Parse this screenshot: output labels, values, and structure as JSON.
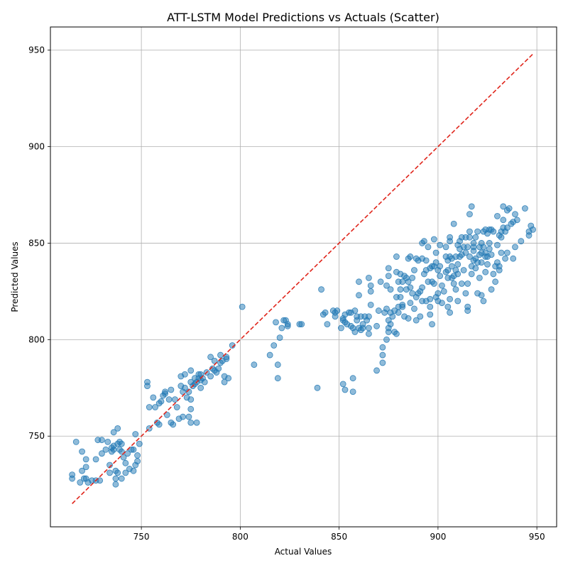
{
  "chart_data": {
    "type": "scatter",
    "title": "ATT-LSTM Model Predictions vs Actuals (Scatter)",
    "xlabel": "Actual Values",
    "ylabel": "Predicted Values",
    "xlim": [
      704,
      960
    ],
    "ylim": [
      703,
      962
    ],
    "xticks": [
      750,
      800,
      850,
      900,
      950
    ],
    "yticks": [
      750,
      800,
      850,
      900,
      950
    ],
    "grid": true,
    "legend": "none",
    "point_color": "#1f77b4",
    "point_alpha": 0.5,
    "reference_line": {
      "style": "dashed",
      "color": "#e0251b",
      "from": [
        715,
        715
      ],
      "to": [
        948,
        948
      ]
    },
    "points": [
      [
        715,
        728
      ],
      [
        715,
        730
      ],
      [
        717,
        747
      ],
      [
        719,
        726
      ],
      [
        720,
        742
      ],
      [
        720,
        732
      ],
      [
        721,
        728
      ],
      [
        722,
        734
      ],
      [
        722,
        738
      ],
      [
        722,
        728
      ],
      [
        723,
        726
      ],
      [
        725,
        727
      ],
      [
        727,
        727
      ],
      [
        727,
        738
      ],
      [
        728,
        748
      ],
      [
        729,
        727
      ],
      [
        730,
        748
      ],
      [
        730,
        741
      ],
      [
        732,
        743
      ],
      [
        733,
        747
      ],
      [
        734,
        735
      ],
      [
        734,
        731
      ],
      [
        735,
        742
      ],
      [
        735,
        744
      ],
      [
        736,
        752
      ],
      [
        736,
        745
      ],
      [
        736,
        743
      ],
      [
        737,
        725
      ],
      [
        737,
        728
      ],
      [
        737,
        732
      ],
      [
        738,
        746
      ],
      [
        738,
        754
      ],
      [
        738,
        731
      ],
      [
        739,
        743
      ],
      [
        739,
        747
      ],
      [
        740,
        728
      ],
      [
        740,
        746
      ],
      [
        740,
        742
      ],
      [
        741,
        739
      ],
      [
        742,
        736
      ],
      [
        742,
        731
      ],
      [
        743,
        741
      ],
      [
        744,
        733
      ],
      [
        745,
        743
      ],
      [
        746,
        743
      ],
      [
        746,
        732
      ],
      [
        747,
        751
      ],
      [
        747,
        735
      ],
      [
        748,
        740
      ],
      [
        748,
        737
      ],
      [
        749,
        746
      ],
      [
        753,
        778
      ],
      [
        753,
        776
      ],
      [
        754,
        765
      ],
      [
        754,
        754
      ],
      [
        756,
        770
      ],
      [
        757,
        765
      ],
      [
        758,
        757
      ],
      [
        759,
        767
      ],
      [
        759,
        756
      ],
      [
        760,
        768
      ],
      [
        761,
        771
      ],
      [
        762,
        772
      ],
      [
        762,
        773
      ],
      [
        763,
        761
      ],
      [
        764,
        769
      ],
      [
        765,
        774
      ],
      [
        765,
        757
      ],
      [
        766,
        756
      ],
      [
        767,
        769
      ],
      [
        768,
        765
      ],
      [
        769,
        759
      ],
      [
        770,
        781
      ],
      [
        770,
        776
      ],
      [
        771,
        760
      ],
      [
        771,
        773
      ],
      [
        772,
        782
      ],
      [
        772,
        775
      ],
      [
        773,
        770
      ],
      [
        774,
        773
      ],
      [
        774,
        760
      ],
      [
        775,
        764
      ],
      [
        775,
        757
      ],
      [
        775,
        769
      ],
      [
        775,
        778
      ],
      [
        775,
        784
      ],
      [
        776,
        776
      ],
      [
        777,
        780
      ],
      [
        777,
        777
      ],
      [
        778,
        778
      ],
      [
        778,
        757
      ],
      [
        779,
        782
      ],
      [
        779,
        780
      ],
      [
        780,
        779
      ],
      [
        780,
        775
      ],
      [
        780,
        782
      ],
      [
        781,
        780
      ],
      [
        782,
        778
      ],
      [
        783,
        783
      ],
      [
        785,
        791
      ],
      [
        785,
        781
      ],
      [
        786,
        785
      ],
      [
        787,
        784
      ],
      [
        787,
        789
      ],
      [
        788,
        783
      ],
      [
        789,
        785
      ],
      [
        790,
        788
      ],
      [
        790,
        792
      ],
      [
        791,
        789
      ],
      [
        792,
        781
      ],
      [
        792,
        778
      ],
      [
        793,
        790
      ],
      [
        793,
        791
      ],
      [
        794,
        780
      ],
      [
        796,
        797
      ],
      [
        801,
        817
      ],
      [
        807,
        787
      ],
      [
        815,
        792
      ],
      [
        817,
        797
      ],
      [
        818,
        809
      ],
      [
        819,
        787
      ],
      [
        819,
        780
      ],
      [
        820,
        801
      ],
      [
        821,
        806
      ],
      [
        822,
        810
      ],
      [
        823,
        810
      ],
      [
        824,
        808
      ],
      [
        824,
        807
      ],
      [
        830,
        808
      ],
      [
        831,
        808
      ],
      [
        839,
        775
      ],
      [
        841,
        826
      ],
      [
        842,
        813
      ],
      [
        843,
        814
      ],
      [
        844,
        808
      ],
      [
        847,
        815
      ],
      [
        848,
        814
      ],
      [
        848,
        812
      ],
      [
        849,
        815
      ],
      [
        851,
        806
      ],
      [
        852,
        811
      ],
      [
        852,
        810
      ],
      [
        852,
        777
      ],
      [
        853,
        809
      ],
      [
        853,
        813
      ],
      [
        853,
        774
      ],
      [
        854,
        808
      ],
      [
        855,
        814
      ],
      [
        856,
        807
      ],
      [
        856,
        814
      ],
      [
        857,
        806
      ],
      [
        857,
        780
      ],
      [
        857,
        773
      ],
      [
        858,
        804
      ],
      [
        858,
        815
      ],
      [
        859,
        810
      ],
      [
        859,
        812
      ],
      [
        860,
        823
      ],
      [
        860,
        806
      ],
      [
        860,
        830
      ],
      [
        861,
        805
      ],
      [
        861,
        812
      ],
      [
        862,
        806
      ],
      [
        862,
        808
      ],
      [
        863,
        812
      ],
      [
        864,
        810
      ],
      [
        865,
        832
      ],
      [
        865,
        806
      ],
      [
        865,
        812
      ],
      [
        865,
        803
      ],
      [
        866,
        828
      ],
      [
        866,
        818
      ],
      [
        866,
        825
      ],
      [
        869,
        784
      ],
      [
        869,
        807
      ],
      [
        870,
        815
      ],
      [
        871,
        830
      ],
      [
        872,
        788
      ],
      [
        872,
        792
      ],
      [
        872,
        796
      ],
      [
        873,
        814
      ],
      [
        874,
        828
      ],
      [
        874,
        816
      ],
      [
        874,
        800
      ],
      [
        875,
        804
      ],
      [
        875,
        806
      ],
      [
        875,
        833
      ],
      [
        875,
        837
      ],
      [
        875,
        810
      ],
      [
        876,
        808
      ],
      [
        876,
        814
      ],
      [
        876,
        826
      ],
      [
        877,
        812
      ],
      [
        878,
        815
      ],
      [
        878,
        804
      ],
      [
        879,
        803
      ],
      [
        879,
        822
      ],
      [
        879,
        835
      ],
      [
        879,
        843
      ],
      [
        880,
        830
      ],
      [
        880,
        814
      ],
      [
        880,
        817
      ],
      [
        881,
        822
      ],
      [
        881,
        826
      ],
      [
        881,
        834
      ],
      [
        882,
        830
      ],
      [
        882,
        817
      ],
      [
        882,
        818
      ],
      [
        883,
        812
      ],
      [
        883,
        833
      ],
      [
        884,
        826
      ],
      [
        884,
        832
      ],
      [
        885,
        842
      ],
      [
        885,
        830
      ],
      [
        885,
        811
      ],
      [
        886,
        819
      ],
      [
        886,
        827
      ],
      [
        886,
        843
      ],
      [
        887,
        832
      ],
      [
        887,
        824
      ],
      [
        888,
        816
      ],
      [
        888,
        836
      ],
      [
        889,
        810
      ],
      [
        889,
        822
      ],
      [
        889,
        842
      ],
      [
        890,
        824
      ],
      [
        890,
        841
      ],
      [
        891,
        825
      ],
      [
        891,
        812
      ],
      [
        892,
        820
      ],
      [
        892,
        827
      ],
      [
        892,
        842
      ],
      [
        892,
        850
      ],
      [
        893,
        834
      ],
      [
        893,
        851
      ],
      [
        894,
        841
      ],
      [
        894,
        820
      ],
      [
        894,
        836
      ],
      [
        895,
        830
      ],
      [
        895,
        848
      ],
      [
        896,
        813
      ],
      [
        896,
        837
      ],
      [
        896,
        817
      ],
      [
        896,
        821
      ],
      [
        897,
        808
      ],
      [
        897,
        830
      ],
      [
        897,
        838
      ],
      [
        898,
        852
      ],
      [
        898,
        838
      ],
      [
        898,
        829
      ],
      [
        899,
        840
      ],
      [
        899,
        845
      ],
      [
        899,
        822
      ],
      [
        900,
        824
      ],
      [
        900,
        820
      ],
      [
        900,
        836
      ],
      [
        901,
        833
      ],
      [
        901,
        838
      ],
      [
        901,
        849
      ],
      [
        902,
        819
      ],
      [
        902,
        828
      ],
      [
        903,
        825
      ],
      [
        904,
        843
      ],
      [
        904,
        835
      ],
      [
        904,
        848
      ],
      [
        905,
        836
      ],
      [
        905,
        817
      ],
      [
        905,
        832
      ],
      [
        905,
        841
      ],
      [
        906,
        851
      ],
      [
        906,
        814
      ],
      [
        906,
        821
      ],
      [
        906,
        853
      ],
      [
        906,
        843
      ],
      [
        907,
        832
      ],
      [
        907,
        838
      ],
      [
        907,
        842
      ],
      [
        908,
        829
      ],
      [
        908,
        860
      ],
      [
        908,
        833
      ],
      [
        909,
        843
      ],
      [
        909,
        826
      ],
      [
        909,
        836
      ],
      [
        910,
        820
      ],
      [
        910,
        849
      ],
      [
        910,
        839
      ],
      [
        910,
        834
      ],
      [
        911,
        851
      ],
      [
        911,
        843
      ],
      [
        911,
        847
      ],
      [
        912,
        829
      ],
      [
        912,
        853
      ],
      [
        912,
        844
      ],
      [
        913,
        836
      ],
      [
        913,
        848
      ],
      [
        914,
        824
      ],
      [
        914,
        845
      ],
      [
        914,
        853
      ],
      [
        915,
        817
      ],
      [
        915,
        815
      ],
      [
        915,
        848
      ],
      [
        915,
        829
      ],
      [
        916,
        856
      ],
      [
        916,
        865
      ],
      [
        916,
        853
      ],
      [
        916,
        843
      ],
      [
        917,
        838
      ],
      [
        917,
        869
      ],
      [
        917,
        834
      ],
      [
        918,
        846
      ],
      [
        918,
        850
      ],
      [
        918,
        848
      ],
      [
        918,
        841
      ],
      [
        919,
        842
      ],
      [
        919,
        837
      ],
      [
        919,
        853
      ],
      [
        920,
        824
      ],
      [
        920,
        840
      ],
      [
        920,
        856
      ],
      [
        921,
        848
      ],
      [
        921,
        832
      ],
      [
        921,
        844
      ],
      [
        922,
        840
      ],
      [
        922,
        850
      ],
      [
        922,
        823
      ],
      [
        922,
        845
      ],
      [
        923,
        820
      ],
      [
        923,
        856
      ],
      [
        923,
        848
      ],
      [
        924,
        857
      ],
      [
        924,
        835
      ],
      [
        924,
        843
      ],
      [
        924,
        845
      ],
      [
        925,
        855
      ],
      [
        925,
        839
      ],
      [
        925,
        843
      ],
      [
        926,
        857
      ],
      [
        926,
        847
      ],
      [
        926,
        850
      ],
      [
        927,
        844
      ],
      [
        927,
        826
      ],
      [
        927,
        857
      ],
      [
        928,
        856
      ],
      [
        928,
        834
      ],
      [
        929,
        830
      ],
      [
        929,
        838
      ],
      [
        930,
        840
      ],
      [
        930,
        849
      ],
      [
        930,
        864
      ],
      [
        931,
        838
      ],
      [
        931,
        854
      ],
      [
        931,
        836
      ],
      [
        932,
        853
      ],
      [
        932,
        845
      ],
      [
        932,
        856
      ],
      [
        933,
        858
      ],
      [
        933,
        869
      ],
      [
        933,
        862
      ],
      [
        934,
        856
      ],
      [
        934,
        842
      ],
      [
        935,
        845
      ],
      [
        935,
        858
      ],
      [
        935,
        867
      ],
      [
        936,
        868
      ],
      [
        937,
        860
      ],
      [
        938,
        861
      ],
      [
        938,
        842
      ],
      [
        939,
        848
      ],
      [
        939,
        865
      ],
      [
        940,
        862
      ],
      [
        942,
        851
      ],
      [
        944,
        868
      ],
      [
        946,
        854
      ],
      [
        946,
        856
      ],
      [
        947,
        859
      ],
      [
        948,
        857
      ]
    ]
  }
}
